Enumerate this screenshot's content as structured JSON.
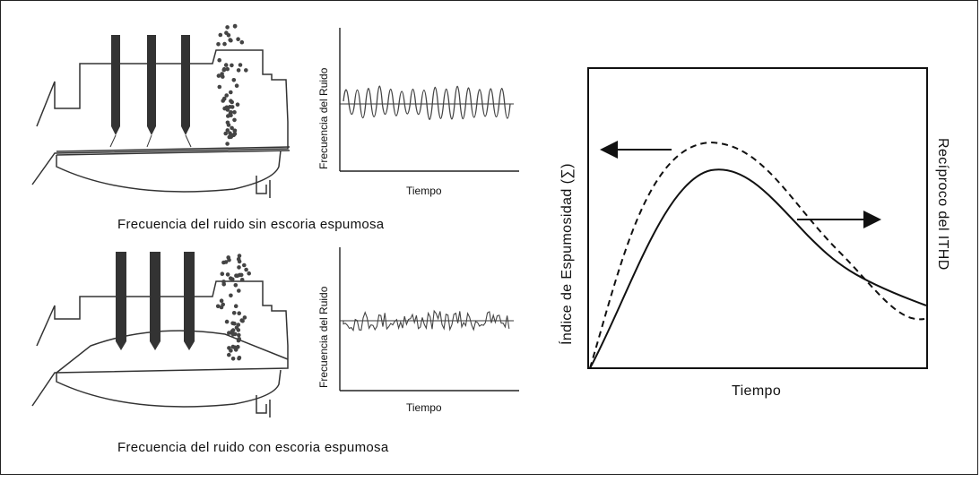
{
  "top_panel": {
    "caption": "Frecuencia del ruido sin escoria espumosa",
    "plot": {
      "ylabel": "Frecuencia del Ruido",
      "xlabel": "Tiempo"
    }
  },
  "bottom_panel": {
    "caption": "Frecuencia del ruido con escoria espumosa",
    "plot": {
      "ylabel": "Frecuencia del Ruido",
      "xlabel": "Tiempo"
    }
  },
  "foaming_chart": {
    "xlabel": "Tiempo",
    "ylabel_left": "Índice de Espumosidad (∑)",
    "ylabel_right": "Recíproco del ITHD"
  },
  "colors": {
    "line": "#222222",
    "electrode": "#333333",
    "particle": "#444444"
  }
}
